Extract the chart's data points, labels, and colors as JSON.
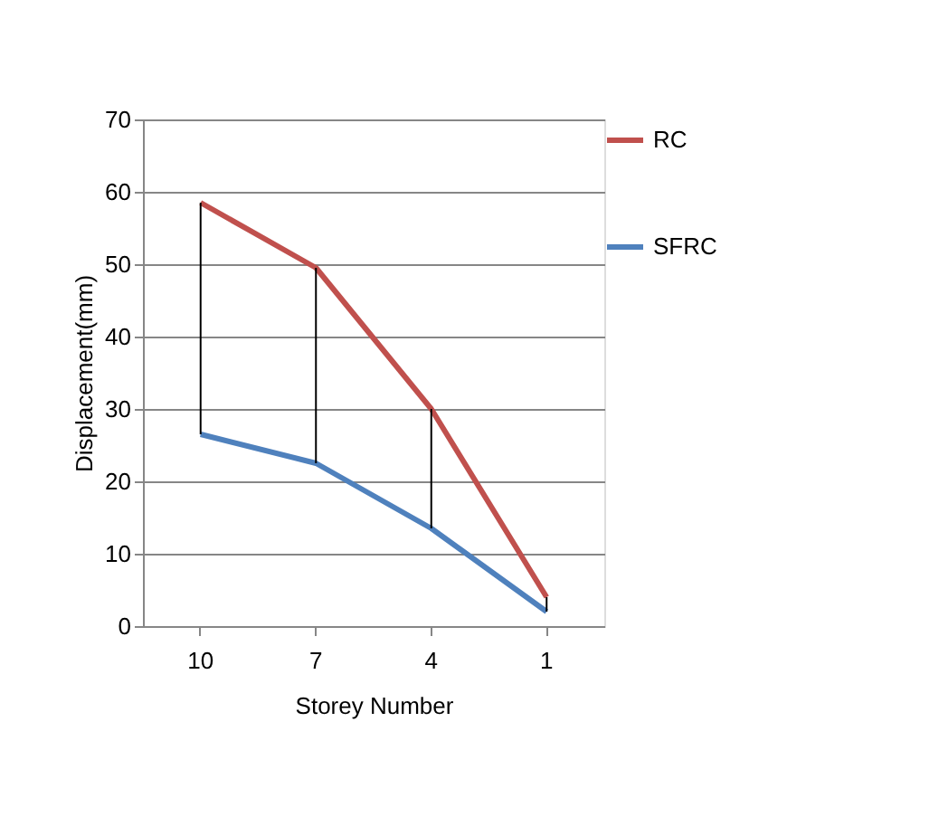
{
  "chart_data": {
    "type": "line",
    "xlabel": "Storey Number",
    "ylabel": "Displacement(mm)",
    "categories": [
      "10",
      "7",
      "4",
      "1"
    ],
    "series": [
      {
        "name": "RC",
        "color": "#c0504d",
        "values": [
          58.5,
          49.5,
          30,
          4
        ],
        "errors": [
          [
            26.5,
            58.5
          ],
          [
            22.5,
            49.5
          ],
          [
            13.5,
            30
          ],
          [
            2,
            4
          ]
        ]
      },
      {
        "name": "SFRC",
        "color": "#4f81bd",
        "values": [
          26.5,
          22.5,
          13.5,
          2
        ]
      }
    ],
    "ylim": [
      0,
      70
    ],
    "yticks": [
      0,
      10,
      20,
      30,
      40,
      50,
      60,
      70
    ],
    "grid": "y",
    "legend": "right",
    "marker": "none",
    "line_style": "solid"
  }
}
